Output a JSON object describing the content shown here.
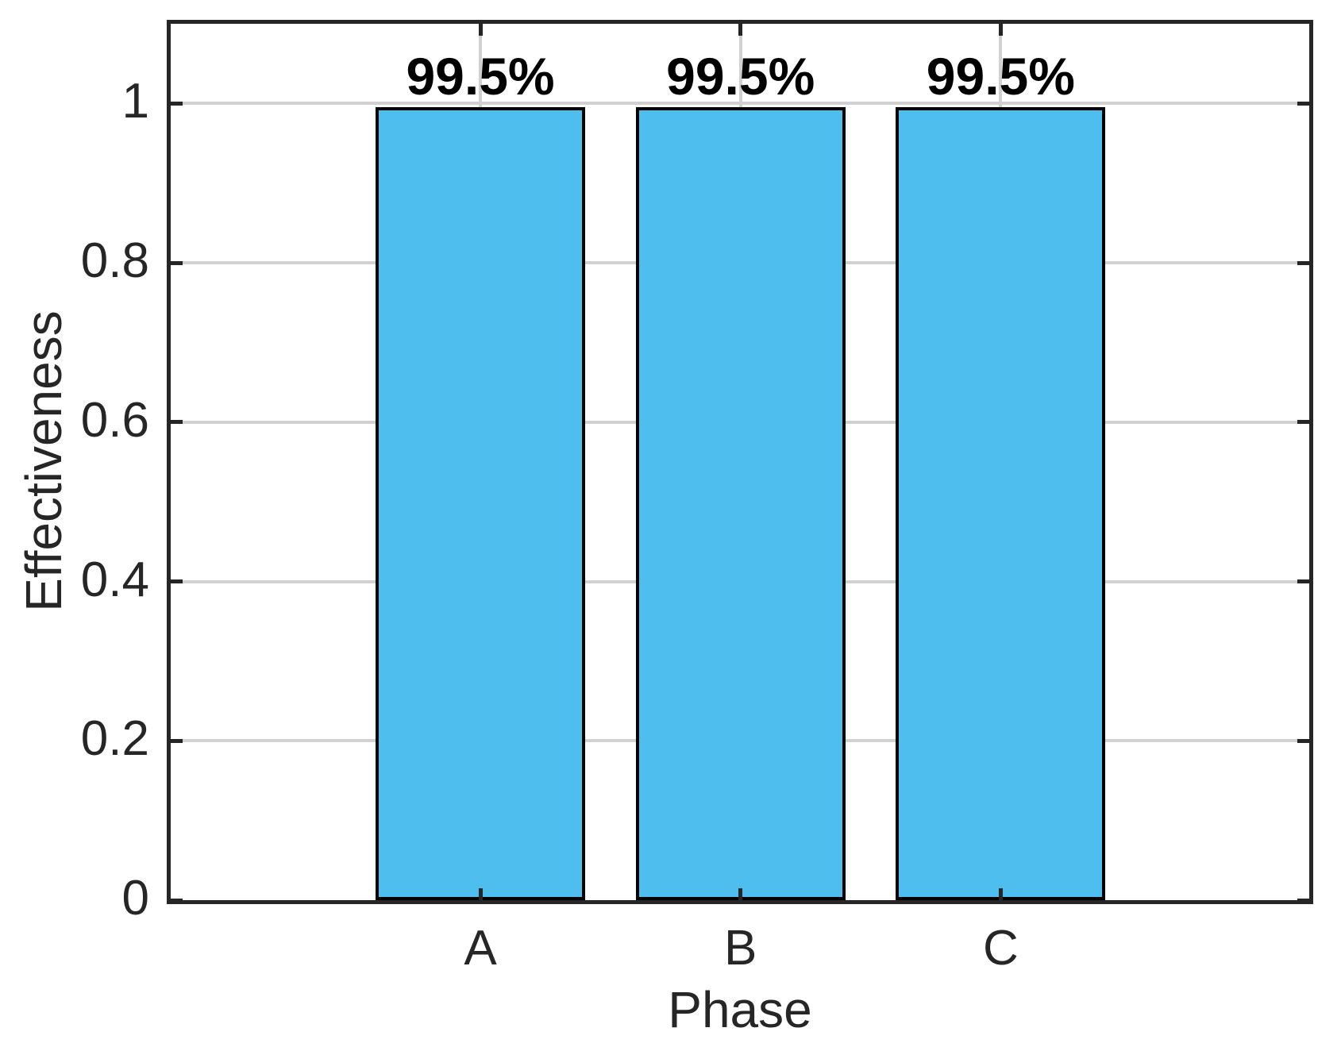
{
  "chart_data": {
    "type": "bar",
    "categories": [
      "A",
      "B",
      "C"
    ],
    "values": [
      0.995,
      0.995,
      0.995
    ],
    "bar_labels": [
      "99.5%",
      "99.5%",
      "99.5%"
    ],
    "title": "",
    "xlabel": "Phase",
    "ylabel": "Effectiveness",
    "ylim": [
      0,
      1.1
    ],
    "yticks": [
      0,
      0.2,
      0.4,
      0.6,
      0.8,
      1
    ],
    "ytick_labels": [
      "0",
      "0.2",
      "0.4",
      "0.6",
      "0.8",
      "1"
    ],
    "grid": true,
    "box": true,
    "legend_position": "none",
    "colors": {
      "bar_fill": "#4DBEEE",
      "bar_edge": "#000000",
      "axis": "#262626",
      "grid": "#d0d0d0",
      "text": "#262626",
      "value_label_text": "#000000",
      "background": "#ffffff"
    }
  }
}
